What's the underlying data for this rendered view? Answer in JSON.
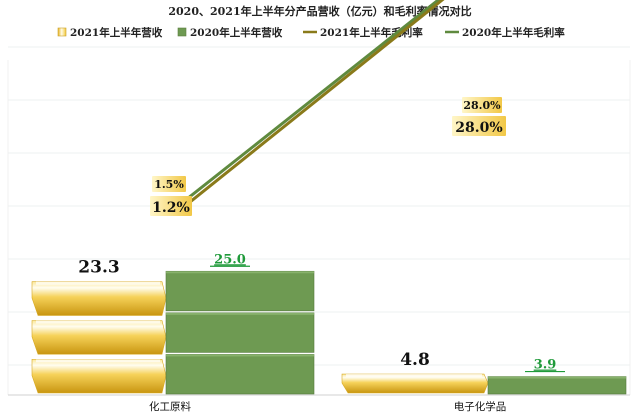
{
  "chart_data": {
    "type": "bar",
    "title": "2020、2021年上半年分产品营收（亿元）和毛利率情况对比",
    "categories": [
      "化工原料",
      "电子化学品"
    ],
    "series": [
      {
        "name": "2021年上半年营收",
        "kind": "bar",
        "values": [
          23.3,
          4.8
        ],
        "labels": [
          "23.3",
          "4.8"
        ],
        "color": "#f2c12e"
      },
      {
        "name": "2020年上半年营收",
        "kind": "bar",
        "values": [
          25.0,
          3.9
        ],
        "labels": [
          "25.0",
          "3.9"
        ],
        "color": "#6e9a52",
        "label_color": "#1f9a3a"
      },
      {
        "name": "2021年上半年毛利率",
        "kind": "line",
        "values": [
          1.2,
          28.0
        ],
        "labels": [
          "1.2%",
          "28.0%"
        ],
        "color": "#8a7a1a"
      },
      {
        "name": "2020年上半年毛利率",
        "kind": "line",
        "values": [
          1.5,
          28.0
        ],
        "labels": [
          "1.5%",
          "28.0%"
        ],
        "color": "#5f8a3e"
      }
    ],
    "ylim": [
      0,
      28
    ],
    "legend": "top",
    "grid": true,
    "xlabel": "",
    "ylabel": ""
  }
}
